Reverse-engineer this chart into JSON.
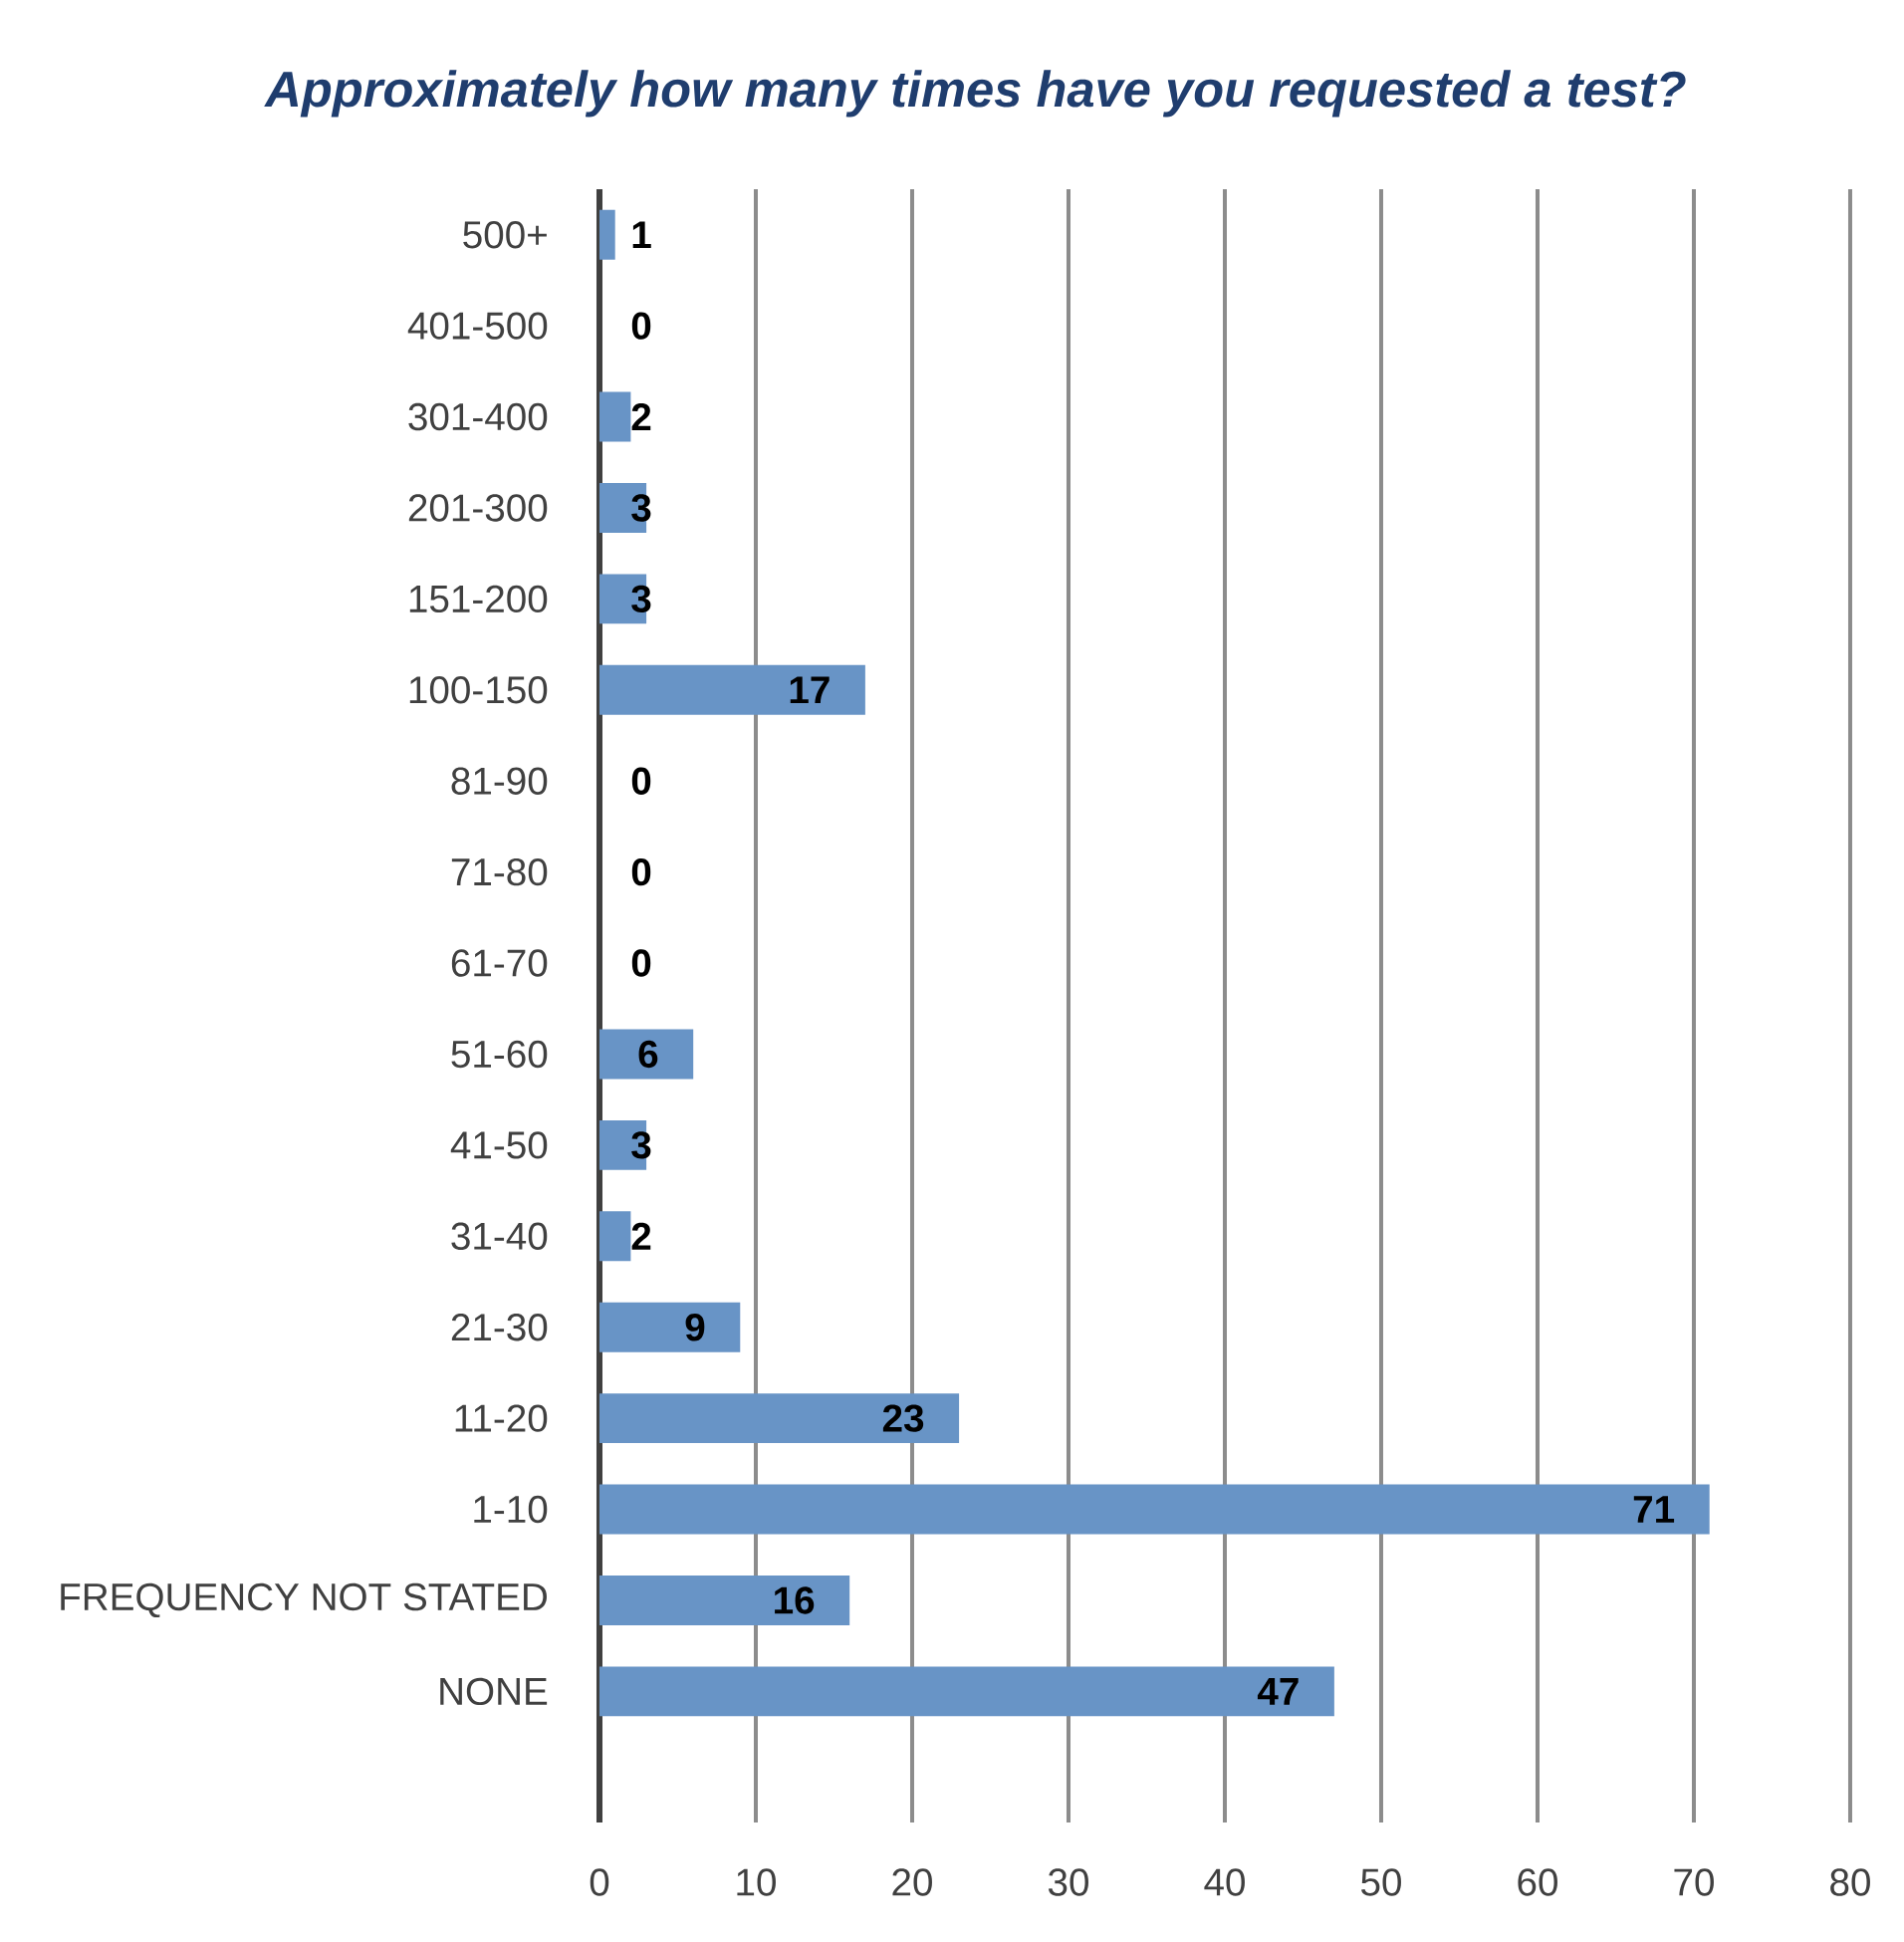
{
  "chart_data": {
    "type": "bar",
    "orientation": "horizontal",
    "title": "Approximately how many times have you requested a test?",
    "categories": [
      "500+",
      "401-500",
      "301-400",
      "201-300",
      "151-200",
      "100-150",
      "81-90",
      "71-80",
      "61-70",
      "51-60",
      "41-50",
      "31-40",
      "21-30",
      "11-20",
      "1-10",
      "FREQUENCY NOT STATED",
      "NONE"
    ],
    "values": [
      1,
      0,
      2,
      3,
      3,
      17,
      0,
      0,
      0,
      6,
      3,
      2,
      9,
      23,
      71,
      16,
      47
    ],
    "color": "#6894c6",
    "xlim": [
      0,
      80
    ],
    "xticks": [
      0,
      10,
      20,
      30,
      40,
      50,
      60,
      70,
      80
    ],
    "grid": "x",
    "data_labels": true
  }
}
